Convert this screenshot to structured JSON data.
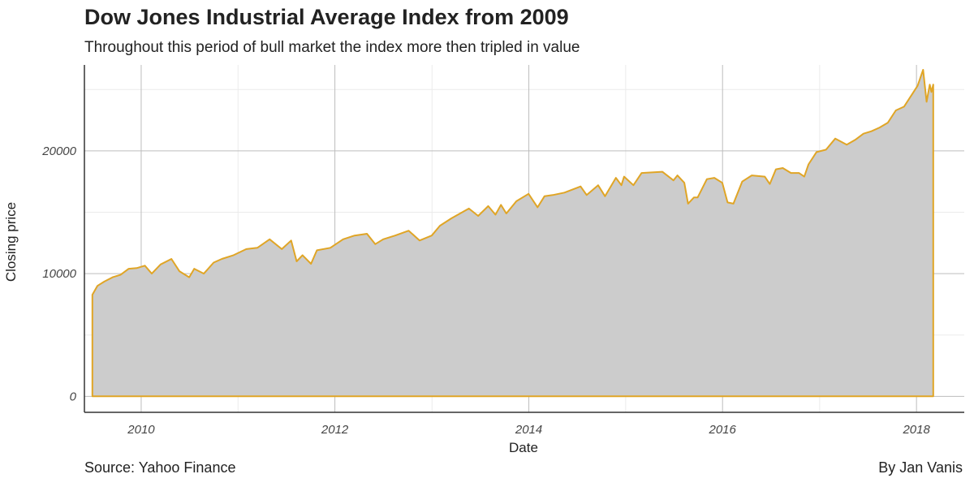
{
  "chart_data": {
    "type": "area",
    "title": "Dow Jones Industrial Average Index from 2009",
    "subtitle": "Throughout this period of bull market the index more then tripled in value",
    "xlabel": "Date",
    "ylabel": "Closing price",
    "caption": "Source: Yahoo Finance",
    "author": "By Jan Vanis",
    "x_ticks": [
      "2010",
      "2012",
      "2014",
      "2016",
      "2018"
    ],
    "y_ticks": [
      0,
      10000,
      20000
    ],
    "xlim": [
      "2009-06-01",
      "2018-06-30"
    ],
    "ylim": [
      -1300,
      27000
    ],
    "grid": true,
    "line_color": "#E0A526",
    "fill_color": "#CCCCCC",
    "series": [
      {
        "x": [
          "2009-07-01",
          "2009-07-20",
          "2009-08-15",
          "2009-09-15",
          "2009-10-15",
          "2009-11-15",
          "2009-12-15",
          "2010-01-15",
          "2010-02-10",
          "2010-03-15",
          "2010-04-25",
          "2010-05-25",
          "2010-07-01",
          "2010-07-20",
          "2010-08-25",
          "2010-10-01",
          "2010-11-01",
          "2010-12-15",
          "2011-02-01",
          "2011-03-15",
          "2011-04-30",
          "2011-06-15",
          "2011-07-20",
          "2011-08-10",
          "2011-09-01",
          "2011-10-03",
          "2011-10-25",
          "2011-12-15",
          "2012-02-01",
          "2012-03-15",
          "2012-05-01",
          "2012-06-01",
          "2012-07-01",
          "2012-08-15",
          "2012-10-05",
          "2012-11-15",
          "2012-12-31",
          "2013-01-31",
          "2013-03-15",
          "2013-05-20",
          "2013-06-24",
          "2013-08-01",
          "2013-08-28",
          "2013-09-18",
          "2013-10-08",
          "2013-11-15",
          "2013-12-31",
          "2014-02-03",
          "2014-03-01",
          "2014-04-01",
          "2014-05-15",
          "2014-07-15",
          "2014-08-07",
          "2014-09-19",
          "2014-10-15",
          "2014-11-25",
          "2014-12-16",
          "2014-12-26",
          "2015-01-30",
          "2015-03-02",
          "2015-05-19",
          "2015-06-30",
          "2015-07-15",
          "2015-08-10",
          "2015-08-24",
          "2015-09-15",
          "2015-09-29",
          "2015-11-03",
          "2015-12-01",
          "2015-12-31",
          "2016-01-20",
          "2016-02-11",
          "2016-03-15",
          "2016-04-20",
          "2016-06-08",
          "2016-06-27",
          "2016-07-20",
          "2016-08-15",
          "2016-09-15",
          "2016-10-15",
          "2016-11-04",
          "2016-11-20",
          "2016-12-20",
          "2017-01-25",
          "2017-03-01",
          "2017-04-13",
          "2017-05-15",
          "2017-06-15",
          "2017-07-15",
          "2017-08-15",
          "2017-09-15",
          "2017-10-15",
          "2017-11-15",
          "2017-12-15",
          "2018-01-05",
          "2018-01-26",
          "2018-02-08",
          "2018-02-20",
          "2018-02-26",
          "2018-03-05"
        ],
        "values": [
          8280,
          9000,
          9350,
          9700,
          9900,
          10400,
          10450,
          10650,
          10000,
          10750,
          11200,
          10200,
          9700,
          10400,
          10000,
          10900,
          11200,
          11500,
          12000,
          12100,
          12800,
          12000,
          12700,
          11000,
          11500,
          10800,
          11900,
          12100,
          12800,
          13100,
          13250,
          12400,
          12800,
          13100,
          13500,
          12700,
          13100,
          13900,
          14500,
          15300,
          14700,
          15500,
          14800,
          15600,
          14900,
          15900,
          16500,
          15400,
          16300,
          16400,
          16600,
          17100,
          16400,
          17200,
          16300,
          17800,
          17200,
          17900,
          17200,
          18200,
          18300,
          17600,
          18000,
          17400,
          15700,
          16200,
          16200,
          17700,
          17800,
          17400,
          15800,
          15700,
          17500,
          18000,
          17900,
          17300,
          18500,
          18600,
          18200,
          18200,
          17900,
          18900,
          19900,
          20100,
          21000,
          20500,
          20900,
          21400,
          21600,
          21900,
          22300,
          23300,
          23600,
          24600,
          25300,
          26600,
          24000,
          25400,
          24800,
          25400
        ]
      }
    ]
  }
}
